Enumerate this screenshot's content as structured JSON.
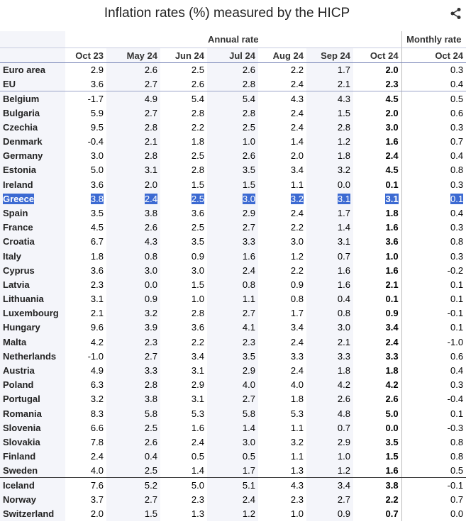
{
  "header": {
    "title": "Inflation rates (%) measured by the HICP"
  },
  "table": {
    "groups": [
      "Annual rate",
      "Monthly rate"
    ],
    "columns": [
      "Oct 23",
      "May 24",
      "Jun 24",
      "Jul 24",
      "Aug 24",
      "Sep 24",
      "Oct 24",
      "Oct 24"
    ],
    "rows": [
      [
        "Euro area",
        "2.9",
        "2.6",
        "2.5",
        "2.6",
        "2.2",
        "1.7",
        "2.0",
        "0.3"
      ],
      [
        "EU",
        "3.6",
        "2.7",
        "2.6",
        "2.8",
        "2.4",
        "2.1",
        "2.3",
        "0.4"
      ],
      [
        "Belgium",
        "-1.7",
        "4.9",
        "5.4",
        "5.4",
        "4.3",
        "4.3",
        "4.5",
        "0.5"
      ],
      [
        "Bulgaria",
        "5.9",
        "2.7",
        "2.8",
        "2.8",
        "2.4",
        "1.5",
        "2.0",
        "0.6"
      ],
      [
        "Czechia",
        "9.5",
        "2.8",
        "2.2",
        "2.5",
        "2.4",
        "2.8",
        "3.0",
        "0.3"
      ],
      [
        "Denmark",
        "-0.4",
        "2.1",
        "1.8",
        "1.0",
        "1.4",
        "1.2",
        "1.6",
        "0.7"
      ],
      [
        "Germany",
        "3.0",
        "2.8",
        "2.5",
        "2.6",
        "2.0",
        "1.8",
        "2.4",
        "0.4"
      ],
      [
        "Estonia",
        "5.0",
        "3.1",
        "2.8",
        "3.5",
        "3.4",
        "3.2",
        "4.5",
        "0.8"
      ],
      [
        "Ireland",
        "3.6",
        "2.0",
        "1.5",
        "1.5",
        "1.1",
        "0.0",
        "0.1",
        "0.3"
      ],
      [
        "Greece",
        "3.8",
        "2.4",
        "2.5",
        "3.0",
        "3.2",
        "3.1",
        "3.1",
        "0.1"
      ],
      [
        "Spain",
        "3.5",
        "3.8",
        "3.6",
        "2.9",
        "2.4",
        "1.7",
        "1.8",
        "0.4"
      ],
      [
        "France",
        "4.5",
        "2.6",
        "2.5",
        "2.7",
        "2.2",
        "1.4",
        "1.6",
        "0.3"
      ],
      [
        "Croatia",
        "6.7",
        "4.3",
        "3.5",
        "3.3",
        "3.0",
        "3.1",
        "3.6",
        "0.8"
      ],
      [
        "Italy",
        "1.8",
        "0.8",
        "0.9",
        "1.6",
        "1.2",
        "0.7",
        "1.0",
        "0.3"
      ],
      [
        "Cyprus",
        "3.6",
        "3.0",
        "3.0",
        "2.4",
        "2.2",
        "1.6",
        "1.6",
        "-0.2"
      ],
      [
        "Latvia",
        "2.3",
        "0.0",
        "1.5",
        "0.8",
        "0.9",
        "1.6",
        "2.1",
        "0.1"
      ],
      [
        "Lithuania",
        "3.1",
        "0.9",
        "1.0",
        "1.1",
        "0.8",
        "0.4",
        "0.1",
        "0.1"
      ],
      [
        "Luxembourg",
        "2.1",
        "3.2",
        "2.8",
        "2.7",
        "1.7",
        "0.8",
        "0.9",
        "-0.1"
      ],
      [
        "Hungary",
        "9.6",
        "3.9",
        "3.6",
        "4.1",
        "3.4",
        "3.0",
        "3.4",
        "0.1"
      ],
      [
        "Malta",
        "4.2",
        "2.3",
        "2.2",
        "2.3",
        "2.4",
        "2.1",
        "2.4",
        "-1.0"
      ],
      [
        "Netherlands",
        "-1.0",
        "2.7",
        "3.4",
        "3.5",
        "3.3",
        "3.3",
        "3.3",
        "0.6"
      ],
      [
        "Austria",
        "4.9",
        "3.3",
        "3.1",
        "2.9",
        "2.4",
        "1.8",
        "1.8",
        "0.4"
      ],
      [
        "Poland",
        "6.3",
        "2.8",
        "2.9",
        "4.0",
        "4.0",
        "4.2",
        "4.2",
        "0.3"
      ],
      [
        "Portugal",
        "3.2",
        "3.8",
        "3.1",
        "2.7",
        "1.8",
        "2.6",
        "2.6",
        "-0.4"
      ],
      [
        "Romania",
        "8.3",
        "5.8",
        "5.3",
        "5.8",
        "5.3",
        "4.8",
        "5.0",
        "0.1"
      ],
      [
        "Slovenia",
        "6.6",
        "2.5",
        "1.6",
        "1.4",
        "1.1",
        "0.7",
        "0.0",
        "-0.3"
      ],
      [
        "Slovakia",
        "7.8",
        "2.6",
        "2.4",
        "3.0",
        "3.2",
        "2.9",
        "3.5",
        "0.8"
      ],
      [
        "Finland",
        "2.4",
        "0.4",
        "0.5",
        "0.5",
        "1.1",
        "1.0",
        "1.5",
        "0.8"
      ],
      [
        "Sweden",
        "4.0",
        "2.5",
        "1.4",
        "1.7",
        "1.3",
        "1.2",
        "1.6",
        "0.5"
      ],
      [
        "Iceland",
        "7.6",
        "5.2",
        "5.0",
        "5.1",
        "4.3",
        "3.4",
        "3.8",
        "-0.1"
      ],
      [
        "Norway",
        "3.7",
        "2.7",
        "2.3",
        "2.4",
        "2.3",
        "2.7",
        "2.2",
        "0.7"
      ],
      [
        "Switzerland",
        "2.0",
        "1.5",
        "1.3",
        "1.2",
        "1.0",
        "0.9",
        "0.7",
        "0.0"
      ]
    ]
  }
}
